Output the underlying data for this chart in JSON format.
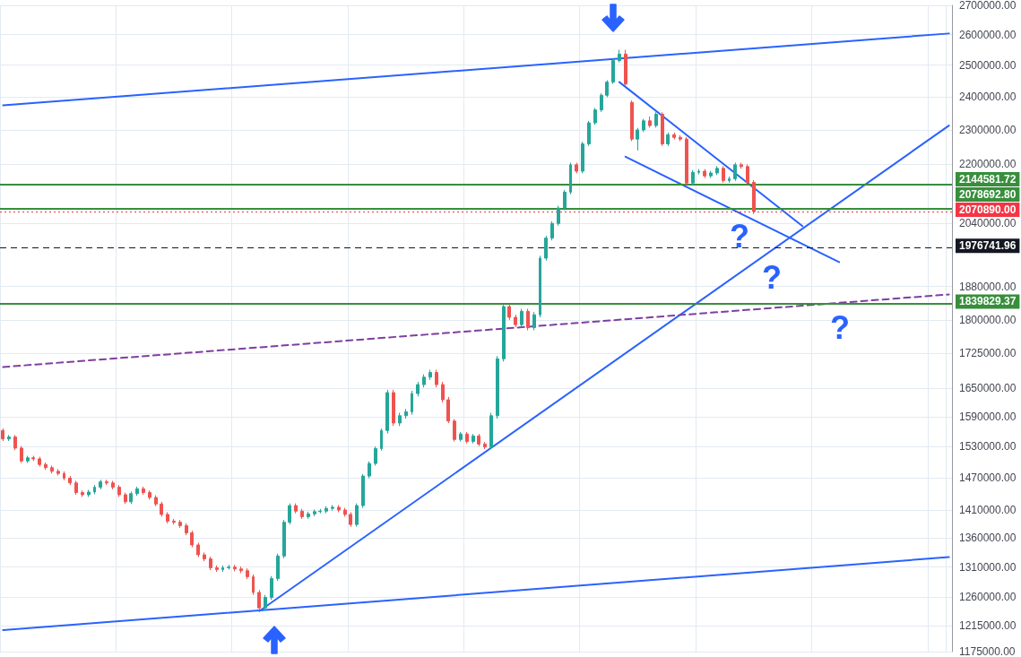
{
  "chart_data": {
    "type": "candlestick",
    "categories": [
      null,
      null,
      null,
      null,
      null,
      null,
      null,
      null,
      null,
      null,
      null,
      null,
      null,
      null,
      null,
      null,
      null,
      null,
      null,
      null,
      null,
      null,
      null,
      null,
      null,
      null,
      null,
      null,
      null,
      null,
      null,
      null,
      null,
      null,
      null,
      null,
      null,
      null,
      null,
      null,
      null,
      null,
      null,
      null,
      null,
      null,
      null,
      null,
      null,
      null,
      null,
      null,
      null,
      null,
      null,
      null,
      null,
      null,
      null,
      null,
      null,
      null,
      null,
      null,
      null,
      null,
      null,
      null,
      null,
      null,
      null,
      null,
      null,
      null,
      null,
      null,
      null,
      null,
      null,
      null,
      null,
      null,
      null,
      null,
      null,
      null,
      null,
      null,
      null,
      null,
      null,
      null,
      null,
      null,
      null,
      null,
      null,
      null,
      null,
      null,
      null,
      null,
      null,
      null,
      null,
      null,
      null,
      null,
      null,
      null,
      null,
      null,
      null,
      null,
      null,
      null,
      null,
      null,
      null,
      null,
      null,
      null,
      null,
      null,
      null,
      null,
      null,
      null,
      null,
      null,
      null,
      null,
      null,
      null,
      null,
      null,
      null,
      null,
      null,
      null,
      null,
      null,
      null,
      null,
      null,
      null,
      null,
      null,
      null,
      null,
      null,
      null,
      null,
      null,
      null,
      null
    ],
    "ohlc": [
      [
        1562000,
        1566000,
        1541000,
        1545000
      ],
      [
        1545000,
        1553000,
        1541000,
        1549000
      ],
      [
        1549000,
        1553000,
        1523000,
        1527000
      ],
      [
        1527000,
        1531000,
        1498000,
        1502000
      ],
      [
        1502000,
        1512000,
        1498000,
        1508000
      ],
      [
        1508000,
        1512000,
        1502000,
        1506000
      ],
      [
        1506000,
        1510000,
        1491000,
        1495000
      ],
      [
        1495000,
        1499000,
        1485000,
        1489000
      ],
      [
        1489000,
        1493000,
        1478000,
        1482000
      ],
      [
        1482000,
        1486000,
        1474000,
        1478000
      ],
      [
        1478000,
        1482000,
        1465000,
        1469000
      ],
      [
        1469000,
        1473000,
        1456000,
        1460000
      ],
      [
        1460000,
        1464000,
        1438000,
        1442000
      ],
      [
        1442000,
        1446000,
        1434000,
        1438000
      ],
      [
        1438000,
        1447000,
        1434000,
        1443000
      ],
      [
        1443000,
        1456000,
        1439000,
        1452000
      ],
      [
        1452000,
        1466000,
        1448000,
        1462000
      ],
      [
        1462000,
        1466000,
        1456000,
        1460000
      ],
      [
        1460000,
        1464000,
        1448000,
        1452000
      ],
      [
        1452000,
        1456000,
        1434000,
        1438000
      ],
      [
        1438000,
        1442000,
        1421000,
        1425000
      ],
      [
        1425000,
        1444000,
        1421000,
        1440000
      ],
      [
        1440000,
        1453000,
        1436000,
        1449000
      ],
      [
        1449000,
        1453000,
        1438000,
        1442000
      ],
      [
        1442000,
        1446000,
        1429000,
        1433000
      ],
      [
        1433000,
        1437000,
        1417000,
        1421000
      ],
      [
        1421000,
        1425000,
        1398000,
        1402000
      ],
      [
        1402000,
        1406000,
        1386000,
        1390000
      ],
      [
        1390000,
        1394000,
        1384000,
        1388000
      ],
      [
        1388000,
        1392000,
        1378000,
        1382000
      ],
      [
        1382000,
        1386000,
        1365000,
        1369000
      ],
      [
        1369000,
        1373000,
        1344000,
        1348000
      ],
      [
        1348000,
        1352000,
        1327000,
        1331000
      ],
      [
        1331000,
        1335000,
        1320000,
        1324000
      ],
      [
        1324000,
        1328000,
        1305000,
        1309000
      ],
      [
        1309000,
        1313000,
        1302000,
        1306000
      ],
      [
        1306000,
        1313000,
        1302000,
        1309000
      ],
      [
        1309000,
        1314000,
        1306000,
        1310000
      ],
      [
        1310000,
        1314000,
        1303000,
        1307000
      ],
      [
        1307000,
        1311000,
        1300000,
        1304000
      ],
      [
        1304000,
        1308000,
        1290000,
        1294000
      ],
      [
        1294000,
        1298000,
        1264000,
        1268000
      ],
      [
        1268000,
        1272000,
        1239000,
        1243000
      ],
      [
        1243000,
        1264000,
        1239000,
        1260000
      ],
      [
        1260000,
        1295000,
        1256000,
        1291000
      ],
      [
        1291000,
        1333000,
        1287000,
        1329000
      ],
      [
        1329000,
        1392000,
        1325000,
        1388000
      ],
      [
        1388000,
        1422000,
        1384000,
        1418000
      ],
      [
        1418000,
        1422000,
        1404000,
        1408000
      ],
      [
        1408000,
        1412000,
        1394000,
        1398000
      ],
      [
        1398000,
        1407000,
        1394000,
        1403000
      ],
      [
        1403000,
        1411000,
        1399000,
        1407000
      ],
      [
        1407000,
        1412000,
        1404000,
        1408000
      ],
      [
        1408000,
        1417000,
        1404000,
        1413000
      ],
      [
        1413000,
        1419000,
        1409000,
        1415000
      ],
      [
        1415000,
        1419000,
        1406000,
        1410000
      ],
      [
        1410000,
        1414000,
        1398000,
        1402000
      ],
      [
        1402000,
        1406000,
        1380000,
        1384000
      ],
      [
        1384000,
        1422000,
        1380000,
        1418000
      ],
      [
        1418000,
        1477000,
        1414000,
        1473000
      ],
      [
        1473000,
        1501000,
        1469000,
        1497000
      ],
      [
        1497000,
        1530000,
        1493000,
        1526000
      ],
      [
        1526000,
        1566000,
        1522000,
        1562000
      ],
      [
        1562000,
        1646000,
        1556000,
        1640000
      ],
      [
        1640000,
        1646000,
        1571000,
        1577000
      ],
      [
        1577000,
        1598000,
        1571000,
        1592000
      ],
      [
        1592000,
        1606000,
        1586000,
        1600000
      ],
      [
        1600000,
        1644000,
        1594000,
        1638000
      ],
      [
        1638000,
        1663000,
        1632000,
        1657000
      ],
      [
        1657000,
        1679000,
        1651000,
        1673000
      ],
      [
        1673000,
        1689000,
        1667000,
        1683000
      ],
      [
        1683000,
        1689000,
        1651000,
        1657000
      ],
      [
        1657000,
        1663000,
        1619000,
        1625000
      ],
      [
        1625000,
        1631000,
        1577000,
        1581000
      ],
      [
        1581000,
        1585000,
        1540000,
        1544000
      ],
      [
        1544000,
        1559000,
        1540000,
        1555000
      ],
      [
        1555000,
        1559000,
        1536000,
        1540000
      ],
      [
        1540000,
        1555000,
        1536000,
        1551000
      ],
      [
        1551000,
        1555000,
        1531000,
        1535000
      ],
      [
        1535000,
        1539000,
        1525000,
        1529000
      ],
      [
        1529000,
        1598000,
        1525000,
        1592000
      ],
      [
        1592000,
        1719000,
        1586000,
        1713000
      ],
      [
        1713000,
        1838000,
        1707000,
        1832000
      ],
      [
        1832000,
        1838000,
        1801000,
        1807000
      ],
      [
        1807000,
        1813000,
        1784000,
        1790000
      ],
      [
        1790000,
        1827000,
        1784000,
        1821000
      ],
      [
        1821000,
        1827000,
        1777000,
        1783000
      ],
      [
        1783000,
        1819000,
        1777000,
        1813000
      ],
      [
        1813000,
        1956000,
        1807000,
        1950000
      ],
      [
        1950000,
        2007000,
        1944000,
        2001000
      ],
      [
        2001000,
        2045000,
        1995000,
        2039000
      ],
      [
        2039000,
        2086000,
        2033000,
        2080000
      ],
      [
        2080000,
        2129000,
        2074000,
        2123000
      ],
      [
        2123000,
        2205000,
        2117000,
        2199000
      ],
      [
        2199000,
        2205000,
        2175000,
        2181000
      ],
      [
        2181000,
        2265000,
        2175000,
        2259000
      ],
      [
        2259000,
        2327000,
        2253000,
        2321000
      ],
      [
        2321000,
        2366000,
        2315000,
        2360000
      ],
      [
        2360000,
        2411000,
        2354000,
        2405000
      ],
      [
        2405000,
        2452000,
        2399000,
        2446000
      ],
      [
        2446000,
        2521000,
        2440000,
        2515000
      ],
      [
        2515000,
        2550000,
        2509000,
        2536000
      ],
      [
        2536000,
        2550000,
        2434000,
        2440000
      ],
      [
        2383000,
        2389000,
        2267000,
        2273000
      ],
      [
        2273000,
        2306000,
        2240000,
        2300000
      ],
      [
        2300000,
        2333000,
        2294000,
        2327000
      ],
      [
        2327000,
        2340000,
        2307000,
        2313000
      ],
      [
        2313000,
        2353000,
        2307000,
        2347000
      ],
      [
        2347000,
        2353000,
        2253000,
        2259000
      ],
      [
        2259000,
        2292000,
        2253000,
        2286000
      ],
      [
        2286000,
        2292000,
        2272000,
        2278000
      ],
      [
        2278000,
        2284000,
        2267000,
        2273000
      ],
      [
        2273000,
        2279000,
        2142000,
        2148000
      ],
      [
        2148000,
        2184000,
        2142000,
        2178000
      ],
      [
        2178000,
        2187000,
        2172000,
        2181000
      ],
      [
        2181000,
        2187000,
        2162000,
        2168000
      ],
      [
        2168000,
        2182000,
        2162000,
        2176000
      ],
      [
        2176000,
        2195000,
        2170000,
        2189000
      ],
      [
        2189000,
        2195000,
        2149000,
        2155000
      ],
      [
        2155000,
        2166000,
        2149000,
        2160000
      ],
      [
        2160000,
        2205000,
        2154000,
        2199000
      ],
      [
        2199000,
        2205000,
        2188000,
        2194000
      ],
      [
        2194000,
        2200000,
        2144000,
        2150000
      ],
      [
        2150000,
        2156000,
        2064000,
        2070890
      ],
      null,
      null,
      null,
      null,
      null,
      null,
      null,
      null,
      null,
      null,
      null,
      null,
      null,
      null,
      null,
      null,
      null,
      null,
      null,
      null,
      null,
      null,
      null,
      null,
      null,
      null,
      null,
      null,
      null,
      null,
      null,
      null
    ],
    "series": [
      {
        "type": "line",
        "color": "#2962ff",
        "values": [
          2374000,
          null,
          null,
          null,
          null,
          null,
          null,
          null,
          null,
          null,
          null,
          null,
          null,
          null,
          null,
          null,
          null,
          null,
          null,
          null,
          null,
          null,
          null,
          null,
          null,
          null,
          null,
          null,
          null,
          null,
          null,
          null,
          null,
          null,
          null,
          null,
          null,
          null,
          null,
          null,
          null,
          null,
          null,
          null,
          null,
          null,
          null,
          null,
          null,
          null,
          null,
          null,
          null,
          null,
          null,
          null,
          null,
          null,
          null,
          null,
          null,
          null,
          null,
          null,
          null,
          null,
          null,
          null,
          null,
          null,
          null,
          null,
          null,
          null,
          null,
          null,
          null,
          null,
          null,
          null,
          null,
          null,
          null,
          null,
          null,
          null,
          null,
          null,
          null,
          null,
          null,
          null,
          null,
          null,
          null,
          null,
          null,
          null,
          null,
          null,
          null,
          null,
          null,
          null,
          null,
          null,
          null,
          null,
          null,
          null,
          null,
          null,
          null,
          null,
          null,
          null,
          null,
          null,
          null,
          null,
          null,
          null,
          null,
          null,
          null,
          null,
          null,
          null,
          null,
          null,
          null,
          null,
          null,
          null,
          null,
          null,
          null,
          null,
          null,
          null,
          null,
          null,
          null,
          null,
          null,
          null,
          null,
          null,
          null,
          null,
          null,
          null,
          null,
          null,
          null,
          2604000
        ]
      },
      {
        "type": "line",
        "color": "#2962ff",
        "values": [
          1208000,
          null,
          null,
          null,
          null,
          null,
          null,
          null,
          null,
          null,
          null,
          null,
          null,
          null,
          null,
          null,
          null,
          null,
          null,
          null,
          null,
          null,
          null,
          null,
          null,
          null,
          null,
          null,
          null,
          null,
          null,
          null,
          null,
          null,
          null,
          null,
          null,
          null,
          null,
          null,
          null,
          null,
          null,
          null,
          null,
          null,
          null,
          null,
          null,
          null,
          null,
          null,
          null,
          null,
          null,
          null,
          null,
          null,
          null,
          null,
          null,
          null,
          null,
          null,
          null,
          null,
          null,
          null,
          null,
          null,
          null,
          null,
          null,
          null,
          null,
          null,
          null,
          null,
          null,
          null,
          null,
          null,
          null,
          null,
          null,
          null,
          null,
          null,
          null,
          null,
          null,
          null,
          null,
          null,
          null,
          null,
          null,
          null,
          null,
          null,
          null,
          null,
          null,
          null,
          null,
          null,
          null,
          null,
          null,
          null,
          null,
          null,
          null,
          null,
          null,
          null,
          null,
          null,
          null,
          null,
          null,
          null,
          null,
          null,
          null,
          null,
          null,
          null,
          null,
          null,
          null,
          null,
          null,
          null,
          null,
          null,
          null,
          null,
          null,
          null,
          null,
          null,
          null,
          null,
          null,
          null,
          null,
          null,
          null,
          null,
          null,
          null,
          null,
          null,
          null,
          1327000
        ]
      },
      {
        "type": "line",
        "color": "#2962ff",
        "values": [
          null,
          null,
          null,
          null,
          null,
          null,
          null,
          null,
          null,
          null,
          null,
          null,
          null,
          null,
          null,
          null,
          null,
          null,
          null,
          null,
          null,
          null,
          null,
          null,
          null,
          null,
          null,
          null,
          null,
          null,
          null,
          null,
          null,
          null,
          null,
          null,
          null,
          null,
          null,
          null,
          null,
          null,
          1238000,
          null,
          null,
          null,
          null,
          null,
          null,
          null,
          null,
          null,
          null,
          null,
          null,
          null,
          null,
          null,
          null,
          null,
          null,
          null,
          null,
          null,
          null,
          null,
          null,
          null,
          null,
          null,
          null,
          null,
          null,
          null,
          null,
          null,
          null,
          null,
          null,
          null,
          null,
          null,
          null,
          null,
          null,
          null,
          null,
          null,
          null,
          null,
          null,
          null,
          null,
          null,
          null,
          null,
          null,
          null,
          null,
          null,
          null,
          null,
          null,
          null,
          null,
          null,
          null,
          null,
          null,
          null,
          null,
          null,
          null,
          null,
          null,
          null,
          null,
          null,
          null,
          null,
          null,
          null,
          null,
          null,
          null,
          null,
          null,
          null,
          null,
          null,
          null,
          null,
          null,
          null,
          null,
          null,
          null,
          null,
          null,
          null,
          null,
          null,
          null,
          null,
          null,
          null,
          null,
          null,
          null,
          null,
          null,
          null,
          null,
          null,
          null,
          2313000
        ]
      },
      {
        "type": "line",
        "color": "#2962ff",
        "values": [
          null,
          null,
          null,
          null,
          null,
          null,
          null,
          null,
          null,
          null,
          null,
          null,
          null,
          null,
          null,
          null,
          null,
          null,
          null,
          null,
          null,
          null,
          null,
          null,
          null,
          null,
          null,
          null,
          null,
          null,
          null,
          null,
          null,
          null,
          null,
          null,
          null,
          null,
          null,
          null,
          null,
          null,
          null,
          null,
          null,
          null,
          null,
          null,
          null,
          null,
          null,
          null,
          null,
          null,
          null,
          null,
          null,
          null,
          null,
          null,
          null,
          null,
          null,
          null,
          null,
          null,
          null,
          null,
          null,
          null,
          null,
          null,
          null,
          null,
          null,
          null,
          null,
          null,
          null,
          null,
          null,
          null,
          null,
          null,
          null,
          null,
          null,
          null,
          null,
          null,
          null,
          null,
          null,
          null,
          null,
          null,
          null,
          null,
          null,
          null,
          null,
          2446000,
          null,
          null,
          null,
          null,
          null,
          null,
          null,
          null,
          null,
          null,
          null,
          null,
          null,
          null,
          null,
          null,
          null,
          null,
          null,
          null,
          null,
          null,
          null,
          null,
          null,
          null,
          null,
          null,
          null,
          2032000,
          null,
          null,
          null,
          null,
          null,
          null,
          null,
          null,
          null,
          null,
          null,
          null,
          null,
          null,
          null,
          null,
          null,
          null,
          null,
          null,
          null,
          null,
          null,
          null
        ]
      },
      {
        "type": "line",
        "color": "#2962ff",
        "values": [
          null,
          null,
          null,
          null,
          null,
          null,
          null,
          null,
          null,
          null,
          null,
          null,
          null,
          null,
          null,
          null,
          null,
          null,
          null,
          null,
          null,
          null,
          null,
          null,
          null,
          null,
          null,
          null,
          null,
          null,
          null,
          null,
          null,
          null,
          null,
          null,
          null,
          null,
          null,
          null,
          null,
          null,
          null,
          null,
          null,
          null,
          null,
          null,
          null,
          null,
          null,
          null,
          null,
          null,
          null,
          null,
          null,
          null,
          null,
          null,
          null,
          null,
          null,
          null,
          null,
          null,
          null,
          null,
          null,
          null,
          null,
          null,
          null,
          null,
          null,
          null,
          null,
          null,
          null,
          null,
          null,
          null,
          null,
          null,
          null,
          null,
          null,
          null,
          null,
          null,
          null,
          null,
          null,
          null,
          null,
          null,
          null,
          null,
          null,
          null,
          null,
          null,
          2222000,
          null,
          null,
          null,
          null,
          null,
          null,
          null,
          null,
          null,
          null,
          null,
          null,
          null,
          null,
          null,
          null,
          null,
          null,
          null,
          null,
          null,
          null,
          null,
          null,
          null,
          null,
          null,
          null,
          null,
          null,
          null,
          null,
          null,
          null,
          1940000,
          null,
          null,
          null,
          null,
          null,
          null,
          null,
          null,
          null,
          null,
          null,
          null,
          null,
          null,
          null,
          null,
          null,
          null
        ]
      },
      {
        "type": "line",
        "color": "#7e3fa0",
        "line_style": "dashed",
        "values": [
          1695000,
          null,
          null,
          null,
          null,
          null,
          null,
          null,
          null,
          null,
          null,
          null,
          null,
          null,
          null,
          null,
          null,
          null,
          null,
          null,
          null,
          null,
          null,
          null,
          null,
          null,
          null,
          null,
          null,
          null,
          null,
          null,
          null,
          null,
          null,
          null,
          null,
          null,
          null,
          null,
          null,
          null,
          null,
          null,
          null,
          null,
          null,
          null,
          null,
          null,
          null,
          null,
          null,
          null,
          null,
          null,
          null,
          null,
          null,
          null,
          null,
          null,
          null,
          null,
          null,
          null,
          null,
          null,
          null,
          null,
          null,
          null,
          null,
          null,
          null,
          null,
          null,
          null,
          null,
          null,
          null,
          null,
          null,
          null,
          null,
          null,
          null,
          null,
          null,
          null,
          null,
          null,
          null,
          null,
          null,
          null,
          null,
          null,
          null,
          null,
          null,
          null,
          null,
          null,
          null,
          null,
          null,
          null,
          null,
          null,
          null,
          null,
          null,
          null,
          null,
          null,
          null,
          null,
          null,
          null,
          null,
          null,
          null,
          null,
          null,
          null,
          null,
          null,
          null,
          null,
          null,
          null,
          null,
          null,
          null,
          null,
          null,
          null,
          null,
          null,
          null,
          null,
          null,
          null,
          null,
          null,
          null,
          null,
          null,
          null,
          null,
          null,
          null,
          null,
          null,
          1861000
        ]
      }
    ],
    "ref_lines": [
      {
        "axis": "y",
        "value": 2144581.72,
        "label": "2144581.72",
        "color": "#388e3c",
        "line_style": "solid"
      },
      {
        "axis": "y",
        "value": 2078692.8,
        "label": "2078692.80",
        "color": "#388e3c",
        "line_style": "solid"
      },
      {
        "axis": "y",
        "value": 2070890,
        "label": "2070890.00",
        "color": "#f23645",
        "line_style": "dotted"
      },
      {
        "axis": "y",
        "value": 1976741.96,
        "label": "1976741.96",
        "color": "#131722",
        "line_style": "dashed"
      },
      {
        "axis": "y",
        "value": 1839829.37,
        "label": "1839829.37",
        "color": "#388e3c",
        "line_style": "solid"
      }
    ],
    "annotations": [
      "?",
      "?",
      "?"
    ],
    "log": "y",
    "ylim": [
      1175000,
      2700000
    ],
    "yticks": [
      {
        "value": 1175000,
        "label": "1175000.00"
      },
      {
        "value": 1215000,
        "label": "1215000.00"
      },
      {
        "value": 1260000,
        "label": "1260000.00"
      },
      {
        "value": 1310000,
        "label": "1310000.00"
      },
      {
        "value": 1360000,
        "label": "1360000.00"
      },
      {
        "value": 1410000,
        "label": "1410000.00"
      },
      {
        "value": 1470000,
        "label": "1470000.00"
      },
      {
        "value": 1530000,
        "label": "1530000.00"
      },
      {
        "value": 1590000,
        "label": "1590000.00"
      },
      {
        "value": 1650000,
        "label": "1650000.00"
      },
      {
        "value": 1725000,
        "label": "1725000.00"
      },
      {
        "value": 1800000,
        "label": "1800000.00"
      },
      {
        "value": 1880000,
        "label": "1880000.00"
      },
      {
        "value": 2040000,
        "label": "2040000.00"
      },
      {
        "value": 2200000,
        "label": "2200000.00"
      },
      {
        "value": 2300000,
        "label": "2300000.00"
      },
      {
        "value": 2400000,
        "label": "2400000.00"
      },
      {
        "value": 2500000,
        "label": "2500000.00"
      },
      {
        "value": 2600000,
        "label": "2600000.00"
      },
      {
        "value": 2700000,
        "label": "2700000.00"
      }
    ],
    "grid": true,
    "tick_labels": "y"
  }
}
